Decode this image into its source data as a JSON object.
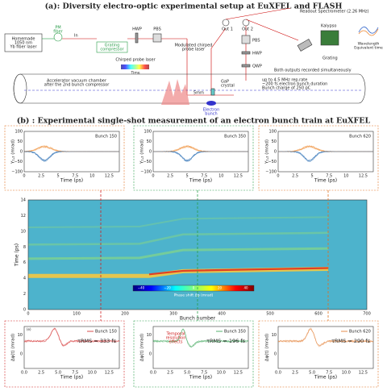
{
  "panel_a": {
    "title": "(a): Diversity electro-optic experimental setup at EuXFEL and FLASH",
    "laser": "Homemade",
    "laser2": "1050 nm",
    "laser3": "Yb fiber laser",
    "pm": "PM",
    "pm2": "fiber",
    "in": "In",
    "grating_comp": "Grating",
    "grating_comp2": "compressor",
    "hwp": "HWP",
    "pbs": "PBS",
    "chirped": "Chirped probe laser",
    "time": "Time",
    "modulated": "Modulated chirped",
    "modulated2": "probe laser",
    "out1": "Out 1",
    "out2": "Out 2",
    "pbs2": "PBS",
    "hwp2": "HWP",
    "qwp": "QWP",
    "readout": "Readout Spectrometer (2.26 MHz)",
    "kalypso": "Kalypso",
    "grating": "Grating",
    "wl": "Wavelength",
    "eqt": "Equivalent time",
    "both": "Both outputs recorded simultaneously",
    "chamber": "Accelerator vacuum chamber",
    "chamber2": "after the 2nd bunch compressor",
    "mm": "5mm",
    "gap": "GaP",
    "gap2": "crystal",
    "bunch": "Electron",
    "bunch2": "bunch",
    "rep": "up to 4.5 MHz rep.rate",
    "dur": "~200 fs electron bunch duration",
    "charge": "Bunch charge of 250 pC"
  },
  "panel_b": {
    "title": "(b) : Experimental single-shot measurement of an electron bunch train at EuXFEL",
    "top_ylabel": "Y₁,₂ (mrad)",
    "xlabel": "Time (ps)",
    "top_yticks": [
      "100",
      "50",
      "0",
      "−50",
      "−100"
    ],
    "top_xticks": [
      "0",
      "2.5",
      "5",
      "7.5",
      "10",
      "12.5"
    ],
    "top_plots": [
      {
        "label": "Bunch 150"
      },
      {
        "label": "Bunch 350"
      },
      {
        "label": "Bunch 620"
      }
    ],
    "heatmap": {
      "yticks": [
        "0",
        "2",
        "4",
        "6",
        "8",
        "10",
        "12",
        "14"
      ],
      "xticks": [
        "0",
        "100",
        "200",
        "300",
        "400",
        "500",
        "600",
        "700"
      ],
      "xlabel": "Bunch number",
      "ylabel": "Time (ps)",
      "colorbar_ticks": [
        "−40",
        "−20",
        "0",
        "20",
        "40"
      ],
      "colorbar_label": "Phase shift Δφ (mrad)"
    },
    "bottom_ylabel": "Δφ(t) (mrad)",
    "bottom_yticks": [
      "10",
      "0"
    ],
    "bottom_xticks": [
      "0.0",
      "2.5",
      "5.0",
      "7.5",
      "10.0",
      "12.5"
    ],
    "bottom_plots": [
      {
        "legend": "Bunch 150",
        "trms": "τRMS = 333 fs"
      },
      {
        "legend": "Bunch 350",
        "trms": "τRMS = 196 fs"
      },
      {
        "legend": "Bunch 620",
        "trms": "τRMS = 290 fs"
      }
    ],
    "annotation": "Temporal",
    "annotation2": "resolution",
    "annotation3": "effects",
    "tag": "(e)"
  }
}
